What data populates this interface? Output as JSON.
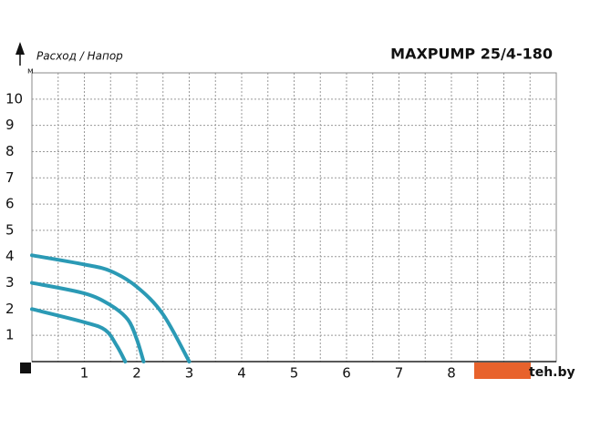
{
  "chart_data": {
    "type": "line",
    "title": "MAXPUMP 25/4-180",
    "axis_label": "Расход / Напор",
    "y_unit": "м",
    "watermark": "teh.by",
    "series": [
      {
        "color": "#2b9ab5",
        "x": [
          0,
          1,
          1.5,
          2,
          2.5,
          3
        ],
        "values": [
          4.05,
          3.7,
          3.45,
          2.85,
          1.8,
          0
        ]
      },
      {
        "color": "#2b9ab5",
        "x": [
          0,
          1,
          1.5,
          1.83,
          2,
          2.13
        ],
        "values": [
          3.0,
          2.6,
          2.15,
          1.6,
          0.85,
          0
        ]
      },
      {
        "color": "#2b9ab5",
        "x": [
          0,
          1,
          1.4,
          1.62,
          1.78
        ],
        "values": [
          2.0,
          1.5,
          1.2,
          0.6,
          0
        ]
      }
    ],
    "xlim": [
      0,
      10
    ],
    "ylim": [
      0,
      11
    ],
    "xticks": [
      1,
      2,
      3,
      4,
      5,
      6,
      7,
      8
    ],
    "yticks": [
      1,
      2,
      3,
      4,
      5,
      6,
      7,
      8,
      9,
      10
    ],
    "grid": true
  }
}
